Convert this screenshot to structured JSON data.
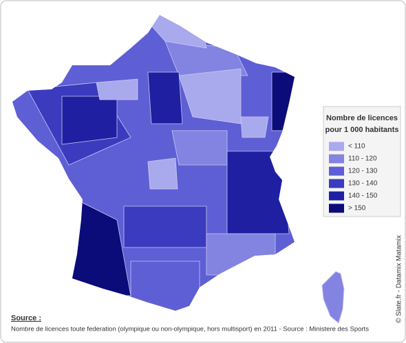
{
  "legend": {
    "title": [
      "Nombre de licences",
      "pour 1 000 habitants"
    ],
    "items": [
      {
        "label": "< 110",
        "color": "#a9a9ee"
      },
      {
        "label": "110 - 120",
        "color": "#8383e2"
      },
      {
        "label": "120 - 130",
        "color": "#5e5ed5"
      },
      {
        "label": "130 - 140",
        "color": "#3b3bbf"
      },
      {
        "label": "140 - 150",
        "color": "#1f1fa2"
      },
      {
        "label": "> 150",
        "color": "#0b0b7a"
      }
    ]
  },
  "source": {
    "heading": "Source :",
    "text": "Nombre de licences toute federation (olympique ou non-olympique, hors multisport) en 2011 - Source : Ministere des Sports"
  },
  "credit": "© Slate.fr - Datamix Matamix"
}
